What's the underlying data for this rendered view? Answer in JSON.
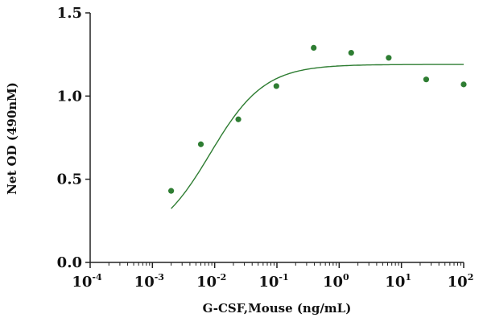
{
  "chart_data": {
    "type": "scatter",
    "title": "",
    "xlabel": "G-CSF,Mouse (ng/mL)",
    "ylabel": "Net OD (490nM)",
    "x_scale": "log10",
    "xlim": [
      0.0001,
      100
    ],
    "ylim": [
      0,
      1.5
    ],
    "x_ticks": [
      {
        "base": "10",
        "exp": "-4"
      },
      {
        "base": "10",
        "exp": "-3"
      },
      {
        "base": "10",
        "exp": "-2"
      },
      {
        "base": "10",
        "exp": "-1"
      },
      {
        "base": "10",
        "exp": "0"
      },
      {
        "base": "10",
        "exp": "1"
      },
      {
        "base": "10",
        "exp": "2"
      }
    ],
    "y_ticks": [
      "0.0",
      "0.5",
      "1.0",
      "1.5"
    ],
    "grid": false,
    "legend": "none",
    "series": [
      {
        "type": "scatter",
        "color": "#2e7d32",
        "points": [
          {
            "x": 0.002,
            "y": 0.43
          },
          {
            "x": 0.006,
            "y": 0.71
          },
          {
            "x": 0.024,
            "y": 0.86
          },
          {
            "x": 0.098,
            "y": 1.06
          },
          {
            "x": 0.39,
            "y": 1.29
          },
          {
            "x": 1.56,
            "y": 1.26
          },
          {
            "x": 6.25,
            "y": 1.23
          },
          {
            "x": 25,
            "y": 1.1
          },
          {
            "x": 100,
            "y": 1.07
          }
        ]
      },
      {
        "type": "line",
        "fit": "4PL",
        "color": "#2e7d32",
        "bottom": 0.12,
        "top": 1.19,
        "ec50": 0.0085,
        "hill": 1.0,
        "x_range": [
          0.002,
          100
        ]
      }
    ]
  }
}
